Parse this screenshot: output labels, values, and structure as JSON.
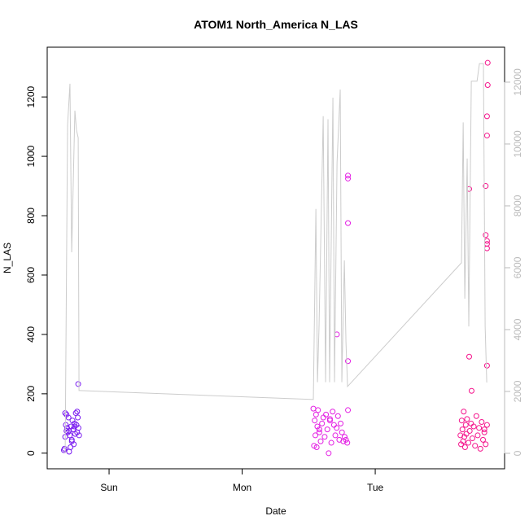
{
  "chart_data": {
    "type": "scatter",
    "title": "ATOM1 North_America N_LAS",
    "x_label": "Date",
    "y_label": "N_LAS",
    "xlim": [
      -0.465,
      2.972
    ],
    "xticks": [
      {
        "value": 0,
        "label": "Sun"
      },
      {
        "value": 1,
        "label": "Mon"
      },
      {
        "value": 2,
        "label": "Tue"
      }
    ],
    "ylim": [
      -52.6,
      1367.6
    ],
    "yticks": [
      0,
      200,
      400,
      600,
      800,
      1000,
      1200
    ],
    "y2lim": [
      -500,
      13130
    ],
    "y2ticks": [
      0,
      2000,
      4000,
      6000,
      8000,
      10000,
      12000
    ],
    "y2_color": "#bbbbbb",
    "series": [
      {
        "color": "#7a1cf0",
        "x": [
          -0.34,
          -0.335,
          -0.33,
          -0.325,
          -0.32,
          -0.315,
          -0.31,
          -0.305,
          -0.3,
          -0.295,
          -0.29,
          -0.285,
          -0.28,
          -0.275,
          -0.27,
          -0.265,
          -0.26,
          -0.255,
          -0.25,
          -0.245,
          -0.24,
          -0.235,
          -0.23,
          -0.225,
          -0.33,
          -0.32,
          -0.3,
          -0.28,
          -0.26,
          -0.24,
          -0.232
        ],
        "values": [
          10,
          15,
          55,
          95,
          130,
          85,
          70,
          120,
          75,
          60,
          20,
          90,
          40,
          110,
          80,
          30,
          100,
          65,
          135,
          95,
          70,
          120,
          85,
          60,
          135,
          75,
          5,
          45,
          90,
          140,
          233
        ]
      },
      {
        "color": "#e31ee3",
        "x": [
          1.535,
          1.54,
          1.545,
          1.55,
          1.555,
          1.56,
          1.565,
          1.57,
          1.58,
          1.59,
          1.6,
          1.61,
          1.62,
          1.63,
          1.64,
          1.65,
          1.66,
          1.67,
          1.68,
          1.69,
          1.7,
          1.71,
          1.72,
          1.73,
          1.74,
          1.75,
          1.76,
          1.77,
          1.78,
          1.79,
          1.795,
          1.795,
          1.795,
          1.712,
          1.795,
          1.795,
          1.58,
          1.66
        ],
        "values": [
          150,
          25,
          110,
          60,
          130,
          20,
          90,
          145,
          70,
          40,
          100,
          120,
          55,
          130,
          80,
          0,
          110,
          35,
          140,
          95,
          60,
          85,
          125,
          45,
          100,
          70,
          40,
          55,
          45,
          35,
          935,
          925,
          775,
          400,
          310,
          145,
          80,
          115
        ]
      },
      {
        "color": "#f5148c",
        "x": [
          2.64,
          2.645,
          2.65,
          2.655,
          2.66,
          2.665,
          2.67,
          2.675,
          2.68,
          2.685,
          2.69,
          2.7,
          2.71,
          2.72,
          2.73,
          2.74,
          2.75,
          2.76,
          2.77,
          2.78,
          2.79,
          2.8,
          2.81,
          2.82,
          2.83,
          2.84,
          2.845,
          2.845,
          2.84,
          2.84,
          2.83,
          2.706,
          2.83,
          2.84,
          2.84,
          2.84,
          2.84,
          2.706,
          2.724,
          2.82
        ],
        "values": [
          60,
          30,
          110,
          80,
          40,
          140,
          55,
          20,
          95,
          65,
          115,
          35,
          75,
          100,
          50,
          90,
          25,
          125,
          60,
          85,
          15,
          105,
          45,
          70,
          30,
          95,
          1315,
          1240,
          1135,
          1070,
          900,
          890,
          735,
          715,
          705,
          690,
          295,
          325,
          210,
          80
        ]
      },
      {
        "type": "line",
        "axis": "y2",
        "color": "#cccccc",
        "x": [
          -0.33,
          -0.312,
          -0.294,
          -0.281,
          -0.257,
          -0.245,
          -0.232,
          -0.226,
          -0.22,
          1.535,
          1.554,
          1.566,
          1.578,
          1.609,
          1.627,
          1.645,
          1.657,
          1.682,
          1.694,
          1.713,
          1.737,
          1.749,
          1.768,
          1.78,
          1.792,
          2.648,
          2.661,
          2.673,
          2.691,
          2.703,
          2.722,
          2.74,
          2.765,
          2.783,
          2.813,
          2.826,
          2.838
        ],
        "values": [
          0,
          10600,
          11950,
          6500,
          11080,
          10450,
          10200,
          2030,
          2030,
          1740,
          7900,
          2300,
          4150,
          10900,
          2300,
          10800,
          2300,
          11500,
          2300,
          9400,
          11760,
          2300,
          6240,
          3600,
          2160,
          6160,
          10700,
          5000,
          9530,
          4100,
          12030,
          12030,
          12030,
          12600,
          12600,
          4100,
          2290
        ]
      }
    ]
  }
}
